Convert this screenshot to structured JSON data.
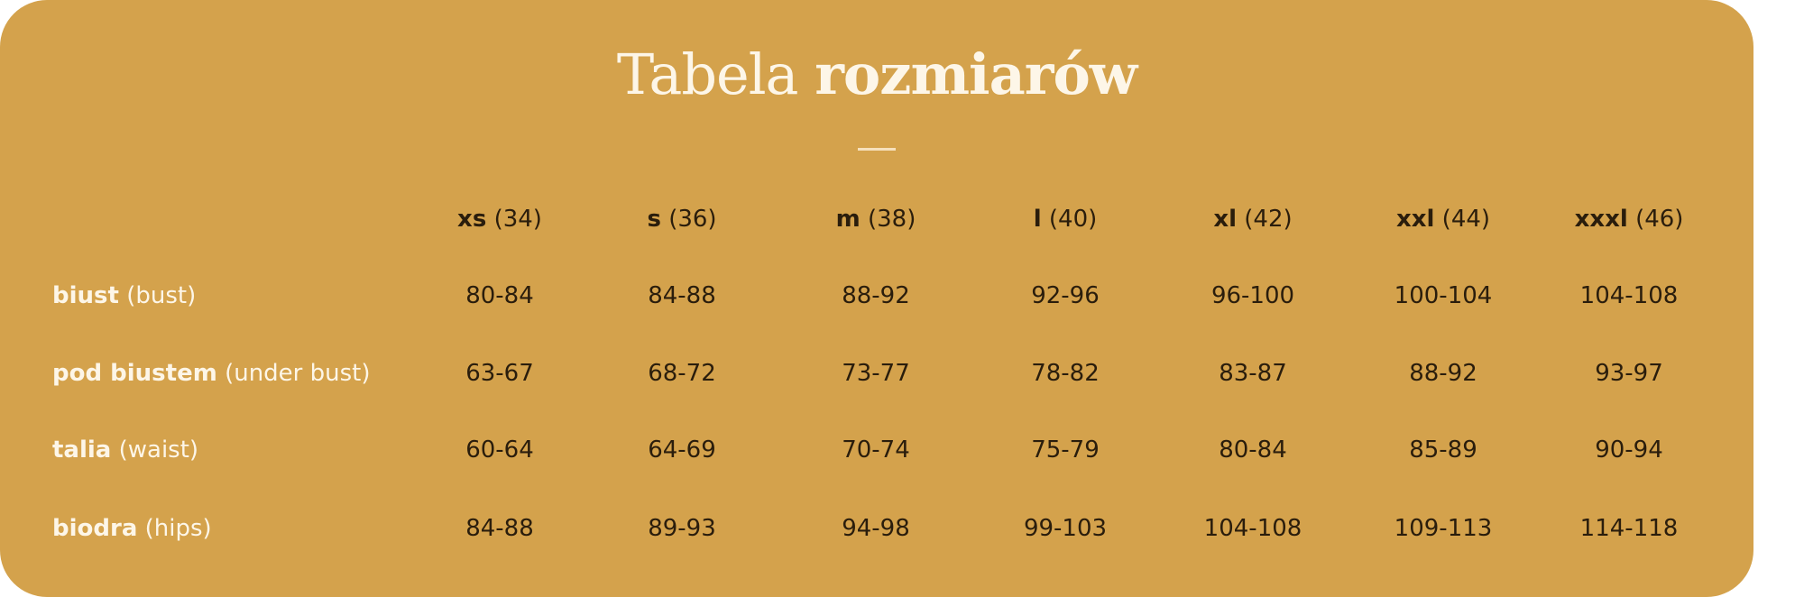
{
  "colors": {
    "background": "#D4A24C",
    "label_text": "#fdf6e8",
    "value_text": "#2a1d0c"
  },
  "title": {
    "light": "Tabela",
    "bold": "rozmiarów"
  },
  "columns": [
    {
      "size": "xs",
      "eu": "(34)"
    },
    {
      "size": "s",
      "eu": "(36)"
    },
    {
      "size": "m",
      "eu": "(38)"
    },
    {
      "size": "l",
      "eu": "(40)"
    },
    {
      "size": "xl",
      "eu": "(42)"
    },
    {
      "size": "xxl",
      "eu": "(44)"
    },
    {
      "size": "xxxl",
      "eu": "(46)"
    }
  ],
  "rows": [
    {
      "label": "biust",
      "translation": "(bust)",
      "values": [
        "80-84",
        "84-88",
        "88-92",
        "92-96",
        "96-100",
        "100-104",
        "104-108"
      ]
    },
    {
      "label": "pod biustem",
      "translation": "(under bust)",
      "values": [
        "63-67",
        "68-72",
        "73-77",
        "78-82",
        "83-87",
        "88-92",
        "93-97"
      ]
    },
    {
      "label": "talia",
      "translation": "(waist)",
      "values": [
        "60-64",
        "64-69",
        "70-74",
        "75-79",
        "80-84",
        "85-89",
        "90-94"
      ]
    },
    {
      "label": "biodra",
      "translation": "(hips)",
      "values": [
        "84-88",
        "89-93",
        "94-98",
        "99-103",
        "104-108",
        "109-113",
        "114-118"
      ]
    }
  ]
}
